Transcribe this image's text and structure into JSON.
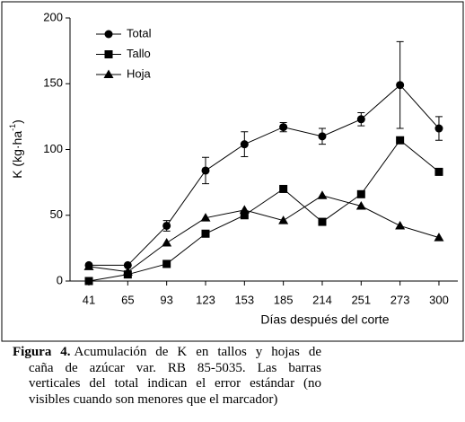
{
  "chart_data": {
    "type": "line",
    "ylabel": {
      "text": "K (kg·ha",
      "sup": "-1",
      "end": ")"
    },
    "xlabel": "Días después del corte",
    "categories": [
      "41",
      "65",
      "93",
      "123",
      "153",
      "185",
      "214",
      "251",
      "273",
      "300"
    ],
    "ylim": [
      0,
      200
    ],
    "yticks": [
      0,
      50,
      100,
      150,
      200
    ],
    "series": [
      {
        "name": "Total",
        "color": "#000000",
        "marker": "circle",
        "values": [
          12,
          12,
          42,
          84,
          104,
          117,
          110,
          123,
          149,
          116
        ],
        "errors": [
          null,
          null,
          4,
          10,
          9.5,
          3.5,
          6,
          5,
          33,
          9
        ]
      },
      {
        "name": "Tallo",
        "color": "#000000",
        "marker": "square",
        "values": [
          0,
          5,
          13,
          36,
          50,
          70,
          45,
          66,
          107,
          83
        ]
      },
      {
        "name": "Hoja",
        "color": "#000000",
        "marker": "triangle",
        "values": [
          11,
          7,
          29,
          48,
          54,
          46,
          65,
          57,
          42,
          33
        ]
      }
    ],
    "legend": "top-left"
  },
  "caption": {
    "label": "Figura 4.",
    "lines": [
      "Acumulación de K en tallos y hojas de",
      "caña de azúcar var. RB 85-5035. Las barras",
      "verticales del total indican el error estándar (no",
      "visibles cuando son menores que el marcador)"
    ]
  }
}
